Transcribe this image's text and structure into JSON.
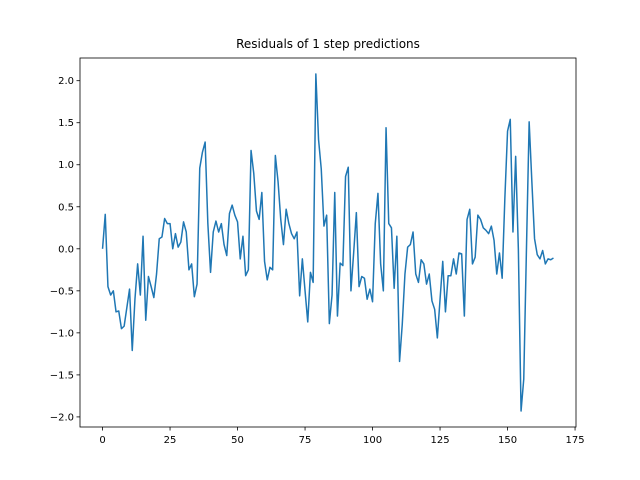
{
  "chart_data": {
    "type": "line",
    "title": "Residuals of 1 step predictions",
    "x": [
      0,
      1,
      2,
      3,
      4,
      5,
      6,
      7,
      8,
      9,
      10,
      11,
      12,
      13,
      14,
      15,
      16,
      17,
      18,
      19,
      20,
      21,
      22,
      23,
      24,
      25,
      26,
      27,
      28,
      29,
      30,
      31,
      32,
      33,
      34,
      35,
      36,
      37,
      38,
      39,
      40,
      41,
      42,
      43,
      44,
      45,
      46,
      47,
      48,
      49,
      50,
      51,
      52,
      53,
      54,
      55,
      56,
      57,
      58,
      59,
      60,
      61,
      62,
      63,
      64,
      65,
      66,
      67,
      68,
      69,
      70,
      71,
      72,
      73,
      74,
      75,
      76,
      77,
      78,
      79,
      80,
      81,
      82,
      83,
      84,
      85,
      86,
      87,
      88,
      89,
      90,
      91,
      92,
      93,
      94,
      95,
      96,
      97,
      98,
      99,
      100,
      101,
      102,
      103,
      104,
      105,
      106,
      107,
      108,
      109,
      110,
      111,
      112,
      113,
      114,
      115,
      116,
      117,
      118,
      119,
      120,
      121,
      122,
      123,
      124,
      125,
      126,
      127,
      128,
      129,
      130,
      131,
      132,
      133,
      134,
      135,
      136,
      137,
      138,
      139,
      140,
      141,
      142,
      143,
      144,
      145,
      146,
      147,
      148,
      149,
      150,
      151,
      152,
      153,
      154,
      155,
      156,
      157,
      158,
      159,
      160,
      161,
      162,
      163,
      164,
      165,
      166,
      167
    ],
    "series": [
      {
        "color": "#1f77b4",
        "values": [
          0.0,
          0.41,
          -0.45,
          -0.55,
          -0.5,
          -0.75,
          -0.74,
          -0.95,
          -0.92,
          -0.7,
          -0.48,
          -1.21,
          -0.6,
          -0.18,
          -0.55,
          0.15,
          -0.85,
          -0.33,
          -0.45,
          -0.58,
          -0.3,
          0.12,
          0.14,
          0.36,
          0.3,
          0.3,
          0.0,
          0.18,
          0.02,
          0.08,
          0.32,
          0.2,
          -0.25,
          -0.18,
          -0.57,
          -0.42,
          0.96,
          1.15,
          1.27,
          0.3,
          -0.28,
          0.2,
          0.33,
          0.2,
          0.3,
          0.05,
          -0.08,
          0.42,
          0.52,
          0.4,
          0.32,
          -0.12,
          0.15,
          -0.32,
          -0.25,
          1.17,
          0.9,
          0.45,
          0.35,
          0.67,
          -0.15,
          -0.37,
          -0.22,
          -0.25,
          1.11,
          0.8,
          0.35,
          0.05,
          0.47,
          0.3,
          0.18,
          0.12,
          0.2,
          -0.56,
          -0.12,
          -0.5,
          -0.87,
          -0.28,
          -0.4,
          2.08,
          1.3,
          0.95,
          0.27,
          0.4,
          -0.89,
          -0.55,
          0.67,
          -0.8,
          -0.17,
          -0.2,
          0.86,
          0.97,
          -0.5,
          -0.05,
          0.43,
          -0.45,
          -0.33,
          -0.35,
          -0.6,
          -0.48,
          -0.63,
          0.3,
          0.66,
          -0.18,
          -0.5,
          1.44,
          0.3,
          0.25,
          -0.47,
          0.15,
          -1.34,
          -0.9,
          -0.3,
          0.02,
          0.05,
          0.2,
          -0.3,
          -0.4,
          -0.13,
          -0.18,
          -0.42,
          -0.3,
          -0.62,
          -0.72,
          -1.06,
          -0.6,
          -0.15,
          -0.75,
          -0.32,
          -0.32,
          -0.12,
          -0.3,
          -0.05,
          -0.06,
          -0.8,
          0.35,
          0.47,
          -0.18,
          -0.1,
          0.4,
          0.35,
          0.25,
          0.22,
          0.18,
          0.27,
          0.1,
          -0.3,
          -0.05,
          -0.35,
          0.6,
          1.4,
          1.54,
          0.2,
          1.1,
          0.0,
          -1.93,
          -1.55,
          0.0,
          1.51,
          0.8,
          0.12,
          -0.07,
          -0.12,
          -0.02,
          -0.18,
          -0.12,
          -0.13,
          -0.11
        ]
      }
    ],
    "xlim": [
      -8.35,
      175.35
    ],
    "ylim": [
      -2.12,
      2.27
    ],
    "xticks": [
      0,
      25,
      50,
      75,
      100,
      125,
      150,
      175
    ],
    "yticks": [
      {
        "value": -2,
        "label": "−2.0"
      },
      {
        "value": -1.5,
        "label": "−1.5"
      },
      {
        "value": -1,
        "label": "−1.0"
      },
      {
        "value": -0.5,
        "label": "−0.5"
      },
      {
        "value": 0,
        "label": "0.0"
      },
      {
        "value": 0.5,
        "label": "0.5"
      },
      {
        "value": 1,
        "label": "1.0"
      },
      {
        "value": 1.5,
        "label": "1.5"
      },
      {
        "value": 2,
        "label": "2.0"
      }
    ]
  }
}
